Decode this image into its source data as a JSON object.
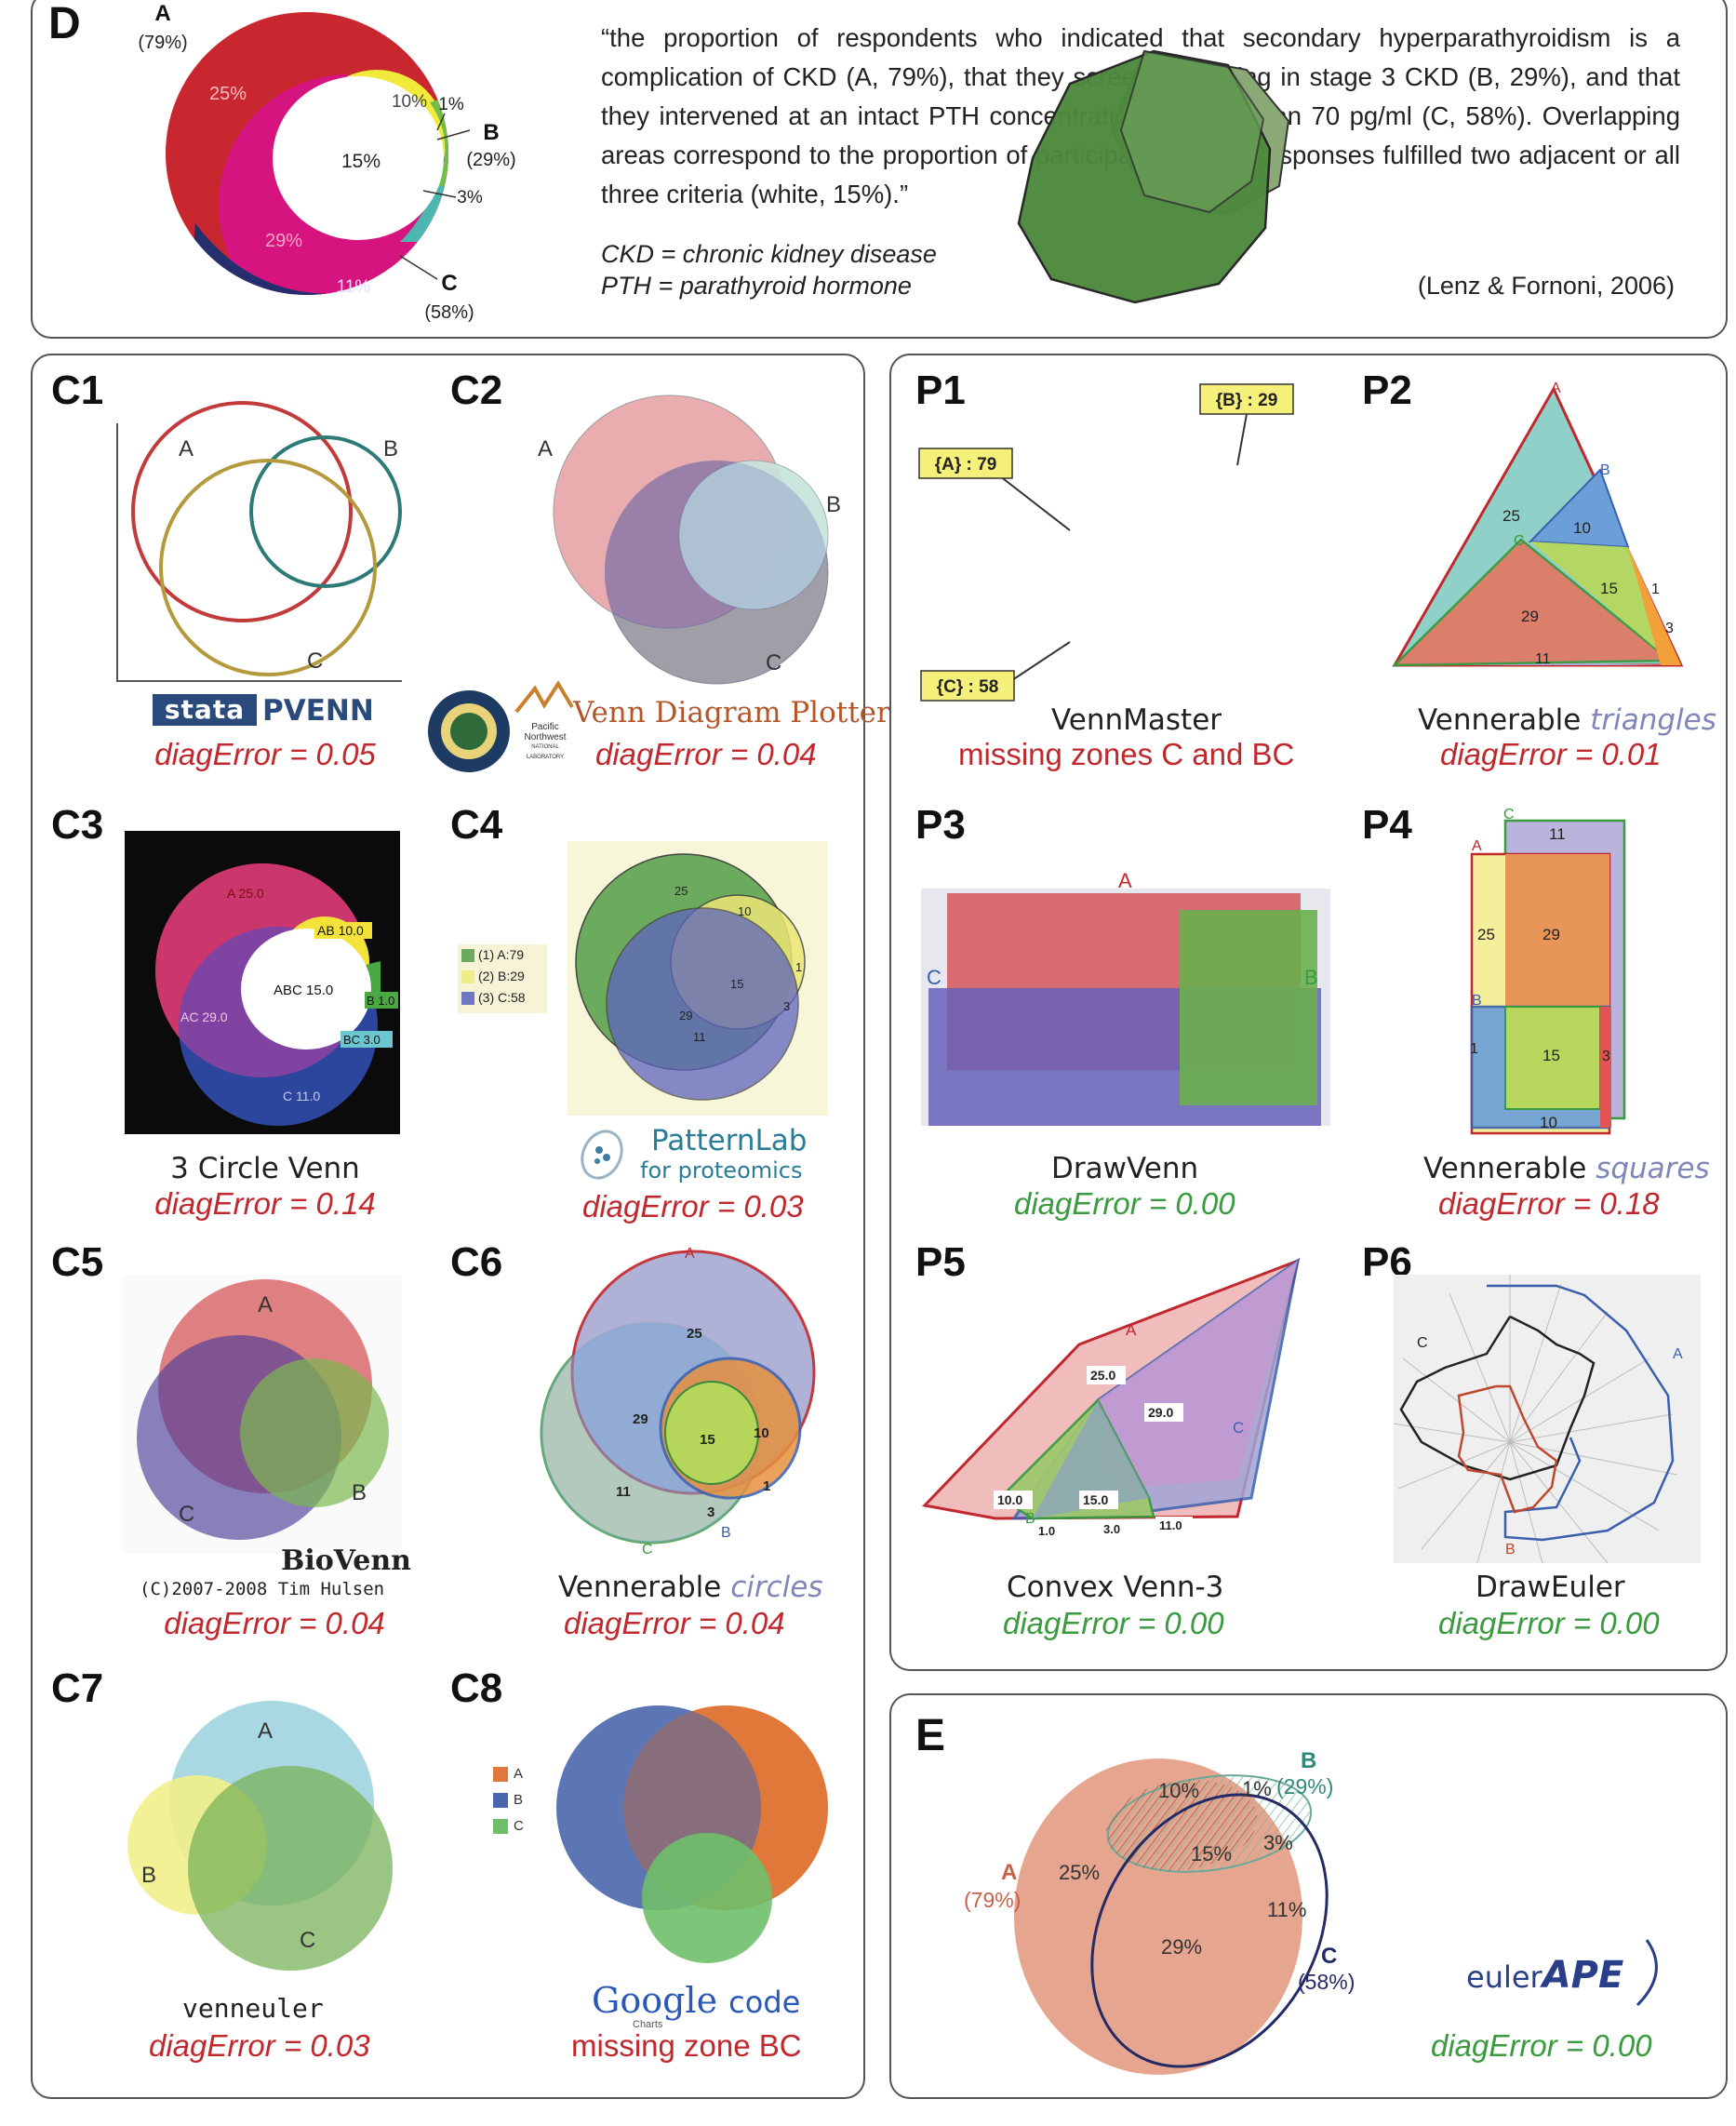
{
  "panelD": {
    "letter": "D",
    "quote": "“the proportion of respondents who indicated that secondary hyperparathyroidism is a complication of CKD (A, 79%), that they screened starting in stage 3 CKD (B, 29%), and that they intervened at an intact PTH concentration of more than 70 pg/ml (C,  58%). Overlapping areas correspond to the proportion of participants whose responses fulfilled two adjacent or all three criteria (white, 15%).”",
    "abbr1": "CKD = chronic kidney disease",
    "abbr2": "PTH = parathyroid hormone",
    "citation": "(Lenz & Fornoni, 2006)",
    "diagram": {
      "setA": "A",
      "pctA": "(79%)",
      "setB": "B",
      "pctB": "(29%)",
      "setC": "C",
      "pctC": "(58%)",
      "z25": "25%",
      "z10": "10%",
      "z1": "1%",
      "z15": "15%",
      "z29": "29%",
      "z3": "3%",
      "z11": "11%"
    }
  },
  "C1": {
    "label": "C1",
    "tool": "PVENN",
    "tool_logo": "stata",
    "diag": "diagError = 0.05",
    "A": "A",
    "B": "B",
    "C": "C"
  },
  "C2": {
    "label": "C2",
    "tool": "Venn Diagram Plotter",
    "org1": "Pacific",
    "org2": "Northwest",
    "org3": "NATIONAL LABORATORY",
    "diag": "diagError = 0.04",
    "A": "A",
    "B": "B",
    "C": "C"
  },
  "C3": {
    "label": "C3",
    "tool": "3 Circle Venn",
    "diag": "diagError = 0.14",
    "zA": "A 25.0",
    "zAB": "AB 10.0",
    "zABC": "ABC 15.0",
    "zAC": "AC 29.0",
    "zB": "B 1.0",
    "zBC": "BC 3.0",
    "zC": "C 11.0"
  },
  "C4": {
    "label": "C4",
    "tool1": "PatternLab",
    "tool2": "for proteomics",
    "diag": "diagError = 0.03",
    "legend": [
      "(1) A:79",
      "(2) B:29",
      "(3) C:58"
    ],
    "z25": "25",
    "z10": "10",
    "z1": "1",
    "z15": "15",
    "z29": "29",
    "z11": "11",
    "z3": "3"
  },
  "C5": {
    "label": "C5",
    "tool": "BioVenn",
    "copyright": "(C)2007-2008 Tim Hulsen",
    "diag": "diagError = 0.04",
    "A": "A",
    "B": "B",
    "C": "C"
  },
  "C6": {
    "label": "C6",
    "tool": "Vennerable",
    "tool_style": "circles",
    "diag": "diagError = 0.04",
    "A": "A",
    "B": "B",
    "C": "C",
    "z25": "25",
    "z29": "29",
    "z15": "15",
    "z10": "10",
    "z11": "11",
    "z1": "1",
    "z3": "3"
  },
  "C7": {
    "label": "C7",
    "tool": "venneuler",
    "diag": "diagError = 0.03",
    "A": "A",
    "B": "B",
    "C": "C"
  },
  "C8": {
    "label": "C8",
    "tool_a": "Google",
    "tool_b": "code",
    "tool_sub": "Charts",
    "diag": "missing zone BC",
    "legend": [
      "A",
      "B",
      "C"
    ]
  },
  "P1": {
    "label": "P1",
    "tool": "VennMaster",
    "diag": "missing zones C and BC",
    "tagA": "{A} : 79",
    "tagB": "{B} : 29",
    "tagC": "{C} : 58"
  },
  "P2": {
    "label": "P2",
    "tool": "Vennerable",
    "tool_style": "triangles",
    "diag": "diagError = 0.01",
    "A": "A",
    "B": "B",
    "C": "C",
    "z25": "25",
    "z10": "10",
    "z15": "15",
    "z29": "29",
    "z11": "11",
    "z1": "1",
    "z3": "3"
  },
  "P3": {
    "label": "P3",
    "tool": "DrawVenn",
    "diag": "diagError = 0.00",
    "A": "A",
    "B": "B",
    "C": "C"
  },
  "P4": {
    "label": "P4",
    "tool": "Vennerable",
    "tool_style": "squares",
    "diag": "diagError = 0.18",
    "A": "A",
    "B": "B",
    "C": "C",
    "z11": "11",
    "z25": "25",
    "z29": "29",
    "z15": "15",
    "z3": "3",
    "z10": "10",
    "z1": "1"
  },
  "P5": {
    "label": "P5",
    "tool": "Convex Venn-3",
    "diag": "diagError = 0.00",
    "A": "A",
    "B": "B",
    "C": "C",
    "z25": "25.0",
    "z29": "29.0",
    "z10": "10.0",
    "z15": "15.0",
    "z1": "1.0",
    "z3": "3.0",
    "z11": "11.0"
  },
  "P6": {
    "label": "P6",
    "tool": "DrawEuler",
    "diag": "diagError = 0.00",
    "A": "A",
    "B": "B",
    "C": "C"
  },
  "E": {
    "letter": "E",
    "tool1": "euler",
    "tool2": "APE",
    "diag": "diagError = 0.00",
    "setA": "A",
    "pctA": "(79%)",
    "setB": "B",
    "pctB": "(29%)",
    "setC": "C",
    "pctC": "(58%)",
    "z10": "10%",
    "z1": "1%",
    "z25": "25%",
    "z15": "15%",
    "z3": "3%",
    "z11": "11%",
    "z29": "29%"
  },
  "colors": {
    "red_text": "#c0282e",
    "green_text": "#3a9a3e",
    "border": "#555555"
  }
}
